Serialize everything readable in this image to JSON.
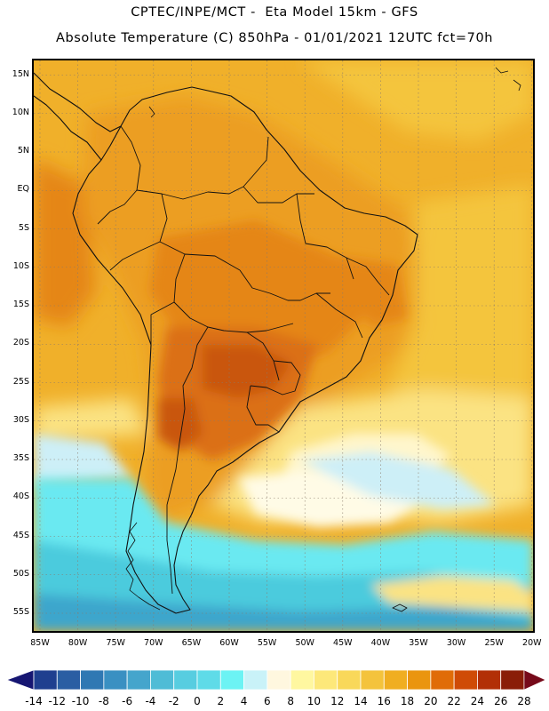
{
  "title_line1": "CPTEC/INPE/MCT -  Eta Model 15km - GFS",
  "title_line2": "Absolute Temperature (C) 850hPa - 01/01/2021 12UTC fct=70h",
  "lat_labels": [
    "15N",
    "10N",
    "5N",
    "EQ",
    "5S",
    "10S",
    "15S",
    "20S",
    "25S",
    "30S",
    "35S",
    "40S",
    "45S",
    "50S",
    "55S"
  ],
  "lon_labels": [
    "85W",
    "80W",
    "75W",
    "70W",
    "65W",
    "60W",
    "55W",
    "50W",
    "45W",
    "40W",
    "35W",
    "30W",
    "25W",
    "20W"
  ],
  "colorbar": {
    "labels": [
      "-14",
      "-12",
      "-10",
      "-8",
      "-6",
      "-4",
      "-2",
      "0",
      "2",
      "4",
      "6",
      "8",
      "10",
      "12",
      "14",
      "16",
      "18",
      "20",
      "22",
      "24",
      "26",
      "28"
    ],
    "colors": [
      "#1f3f8f",
      "#2a5ea3",
      "#2f78b3",
      "#3a90c2",
      "#45a5cc",
      "#4fbcd6",
      "#57cde0",
      "#5fdbe8",
      "#6cf3f4",
      "#c9f2f8",
      "#fff7df",
      "#fff7a0",
      "#fde87a",
      "#f9d85a",
      "#f4c33c",
      "#f0ae21",
      "#ea950f",
      "#e06c08",
      "#cf4b06",
      "#b22f06",
      "#8a1d08"
    ],
    "left_end_color": "#161672",
    "right_end_color": "#760a1a"
  },
  "map": {
    "background_color": "#f0b02a",
    "land_base_color": "#ec9e20",
    "grid_style": "dotted",
    "colors": {
      "hot": "#e58616",
      "hotter": "#db6f12",
      "hottest": "#c9560e",
      "warm_yellow": "#f4c53e",
      "light_yellow": "#fbe383",
      "pale": "#fff6cc",
      "cream": "#fffbe6",
      "light_cyan": "#cdeff7",
      "cyan": "#6ae9f1",
      "teal": "#4ccbdd",
      "blue": "#3ca6cc"
    }
  }
}
